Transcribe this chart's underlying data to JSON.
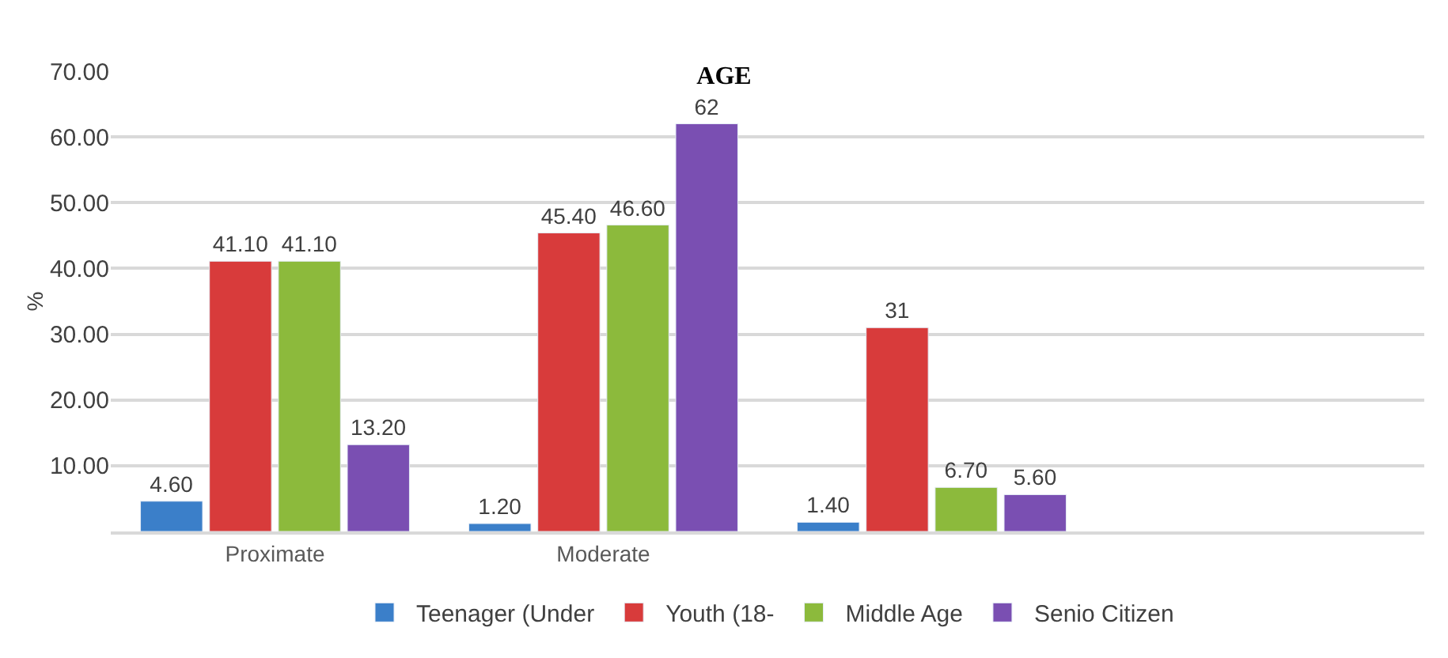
{
  "chart_data": {
    "type": "bar",
    "title": "AGE",
    "ylabel": "%",
    "categories": [
      "Proximate",
      "Moderate",
      null,
      null
    ],
    "series": [
      {
        "name": "Teenager (Under",
        "color": "#3b7fc9",
        "values": [
          4.6,
          1.2,
          1.4,
          null
        ],
        "value_labels": [
          "4.60",
          "1.20",
          "1.40",
          null
        ]
      },
      {
        "name": "Youth (18-",
        "color": "#d83b3b",
        "values": [
          41.1,
          45.4,
          31,
          null
        ],
        "value_labels": [
          "41.10",
          "45.40",
          "31",
          null
        ]
      },
      {
        "name": "Middle Age",
        "color": "#8cba3c",
        "values": [
          41.1,
          46.6,
          6.7,
          null
        ],
        "value_labels": [
          "41.10",
          "46.60",
          "6.70",
          null
        ]
      },
      {
        "name": "Senio Citizen",
        "color": "#7a4fb2",
        "values": [
          13.2,
          62,
          5.6,
          null
        ],
        "value_labels": [
          "13.20",
          "62",
          "5.60",
          null
        ]
      }
    ],
    "ylim": [
      0,
      70
    ],
    "yticks": [
      {
        "value": 0,
        "label": null
      },
      {
        "value": 10,
        "label": "10.00"
      },
      {
        "value": 20,
        "label": "20.00"
      },
      {
        "value": 30,
        "label": "30.00"
      },
      {
        "value": 40,
        "label": "40.00"
      },
      {
        "value": 50,
        "label": "50.00"
      },
      {
        "value": 60,
        "label": "60.00"
      },
      {
        "value": 70,
        "label": "70.00"
      }
    ],
    "grid": "y",
    "legend": "bottom"
  }
}
